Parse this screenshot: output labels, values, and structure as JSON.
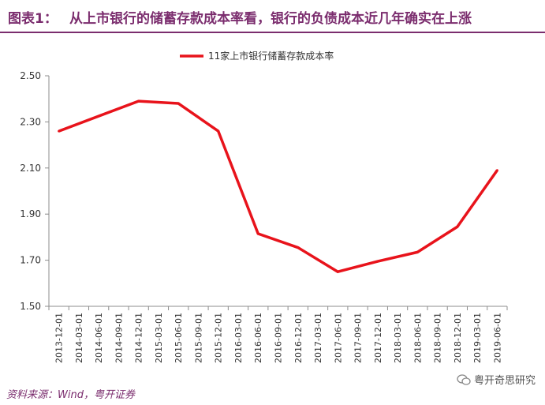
{
  "header": {
    "figure_label": "图表1：",
    "title": "从上市银行的储蓄存款成本率看，银行的负债成本近几年确实在上涨"
  },
  "footer": {
    "source": "资料来源：Wind，粤开证券",
    "watermark": "粤开奇思研究"
  },
  "colors": {
    "accent": "#7b2d6e",
    "series": "#e8131b"
  },
  "chart_data": {
    "type": "line",
    "legend_position": "top-center",
    "grid": false,
    "ylim": [
      1.5,
      2.5
    ],
    "yticks": [
      "1.50",
      "1.70",
      "1.90",
      "2.10",
      "2.30",
      "2.50"
    ],
    "categories": [
      "2013-12-01",
      "2014-03-01",
      "2014-06-01",
      "2014-09-01",
      "2014-12-01",
      "2015-03-01",
      "2015-06-01",
      "2015-09-01",
      "2015-12-01",
      "2016-03-01",
      "2016-06-01",
      "2016-09-01",
      "2016-12-01",
      "2017-03-01",
      "2017-06-01",
      "2017-09-01",
      "2017-12-01",
      "2018-03-01",
      "2018-06-01",
      "2018-09-01",
      "2018-12-01",
      "2019-03-01",
      "2019-06-01"
    ],
    "series": [
      {
        "name": "11家上市银行储蓄存款成本率",
        "color": "#e8131b",
        "points": [
          {
            "x": "2013-12-01",
            "y": 2.26
          },
          {
            "x": "2014-12-01",
            "y": 2.39
          },
          {
            "x": "2015-06-01",
            "y": 2.38
          },
          {
            "x": "2015-12-01",
            "y": 2.26
          },
          {
            "x": "2016-06-01",
            "y": 1.815
          },
          {
            "x": "2016-12-01",
            "y": 1.755
          },
          {
            "x": "2017-06-01",
            "y": 1.65
          },
          {
            "x": "2017-12-01",
            "y": 1.695
          },
          {
            "x": "2018-06-01",
            "y": 1.735
          },
          {
            "x": "2018-12-01",
            "y": 1.845
          },
          {
            "x": "2019-06-01",
            "y": 2.09
          }
        ]
      }
    ]
  }
}
